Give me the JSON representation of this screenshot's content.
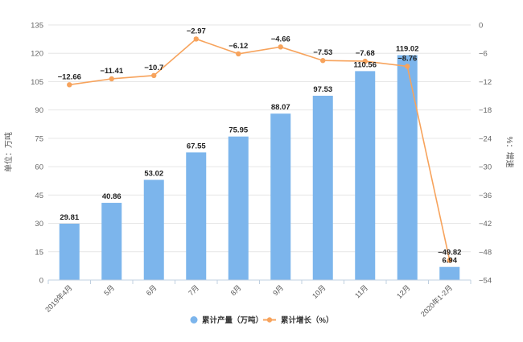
{
  "chart_data": {
    "type": "bar",
    "categories": [
      "2019年4月",
      "5月",
      "6月",
      "7月",
      "8月",
      "9月",
      "10月",
      "11月",
      "12月",
      "2020年1-2月"
    ],
    "series": [
      {
        "name": "累计产量（万吨）",
        "type": "bar",
        "axis": "left",
        "color": "#7cb5ec",
        "values": [
          29.81,
          40.86,
          53.02,
          67.55,
          75.95,
          88.07,
          97.53,
          110.56,
          119.02,
          6.94
        ]
      },
      {
        "name": "累计增长（%）",
        "type": "line",
        "axis": "right",
        "color": "#f7a35c",
        "values": [
          -12.66,
          -11.41,
          -10.7,
          -2.97,
          -6.12,
          -4.66,
          -7.53,
          -7.68,
          -8.76,
          -49.82
        ]
      }
    ],
    "y_left": {
      "label": "单位：万吨",
      "range": [
        0,
        135
      ],
      "ticks": [
        0,
        15,
        30,
        45,
        60,
        75,
        90,
        105,
        120,
        135
      ]
    },
    "y_right": {
      "label": "%：增速",
      "range": [
        -54,
        0
      ],
      "ticks": [
        0,
        -6,
        -12,
        -18,
        -24,
        -30,
        -36,
        -42,
        -48,
        -54
      ]
    },
    "grid": true,
    "legend_position": "bottom-center"
  }
}
